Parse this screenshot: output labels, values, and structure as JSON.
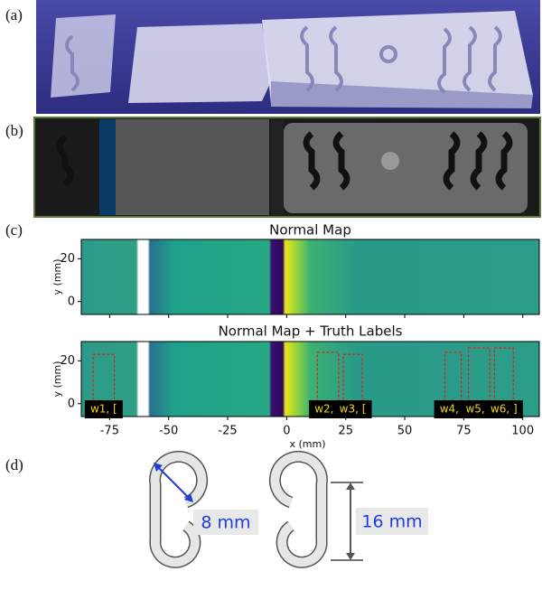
{
  "panel_labels": [
    "(a)",
    "(b)",
    "(c)",
    "(d)"
  ],
  "axes": {
    "xlabel": "x (mm)",
    "ylabel": "y (mm)",
    "xlim": [
      -87,
      107
    ],
    "ylim": [
      -6,
      29
    ],
    "xticks": [
      -75,
      -50,
      -25,
      0,
      25,
      50,
      75,
      100
    ],
    "yticks": [
      0,
      20
    ]
  },
  "plots": [
    {
      "title": "Normal Map"
    },
    {
      "title": "Normal Map + Truth Labels",
      "boxes": [
        {
          "label": "w1, [",
          "x": [
            -82,
            -73
          ],
          "y": [
            -2,
            23
          ]
        },
        {
          "label": "w2, [",
          "x": [
            13,
            22
          ],
          "y": [
            -2,
            24
          ]
        },
        {
          "label": "w3, [",
          "x": [
            24,
            32
          ],
          "y": [
            -2,
            23
          ]
        },
        {
          "label": "w4, ]",
          "x": [
            67,
            74
          ],
          "y": [
            -2,
            24
          ]
        },
        {
          "label": "w5, ]",
          "x": [
            77,
            86
          ],
          "y": [
            0,
            26
          ]
        },
        {
          "label": "w6, ]",
          "x": [
            88,
            96
          ],
          "y": [
            0,
            26
          ]
        }
      ]
    }
  ],
  "diagram": {
    "labels": [
      "8 mm",
      "16 mm"
    ]
  }
}
